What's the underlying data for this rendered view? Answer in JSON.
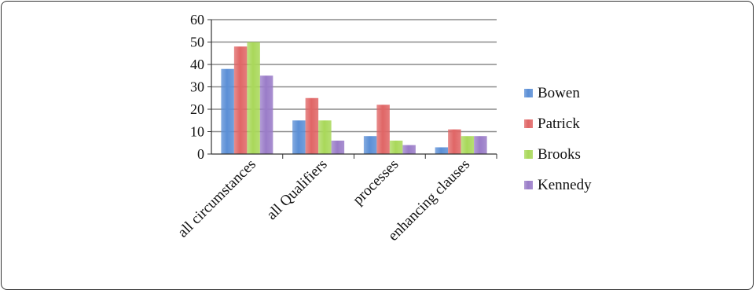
{
  "chart_data": {
    "type": "bar",
    "categories": [
      "all circumstances",
      "all Qualifiers",
      "processes",
      "enhancing clauses"
    ],
    "series": [
      {
        "name": "Bowen",
        "values": [
          38,
          15,
          8,
          3
        ],
        "color": "#5b8fd6"
      },
      {
        "name": "Patrick",
        "values": [
          48,
          25,
          22,
          11
        ],
        "color": "#e06666"
      },
      {
        "name": "Brooks",
        "values": [
          50,
          15,
          6,
          8
        ],
        "color": "#a9d85a"
      },
      {
        "name": "Kennedy",
        "values": [
          35,
          6,
          4,
          8
        ],
        "color": "#9a7cc8"
      }
    ],
    "ylim": [
      0,
      60
    ],
    "yticks": [
      0,
      10,
      20,
      30,
      40,
      50,
      60
    ],
    "grid": true,
    "legend": "right"
  }
}
